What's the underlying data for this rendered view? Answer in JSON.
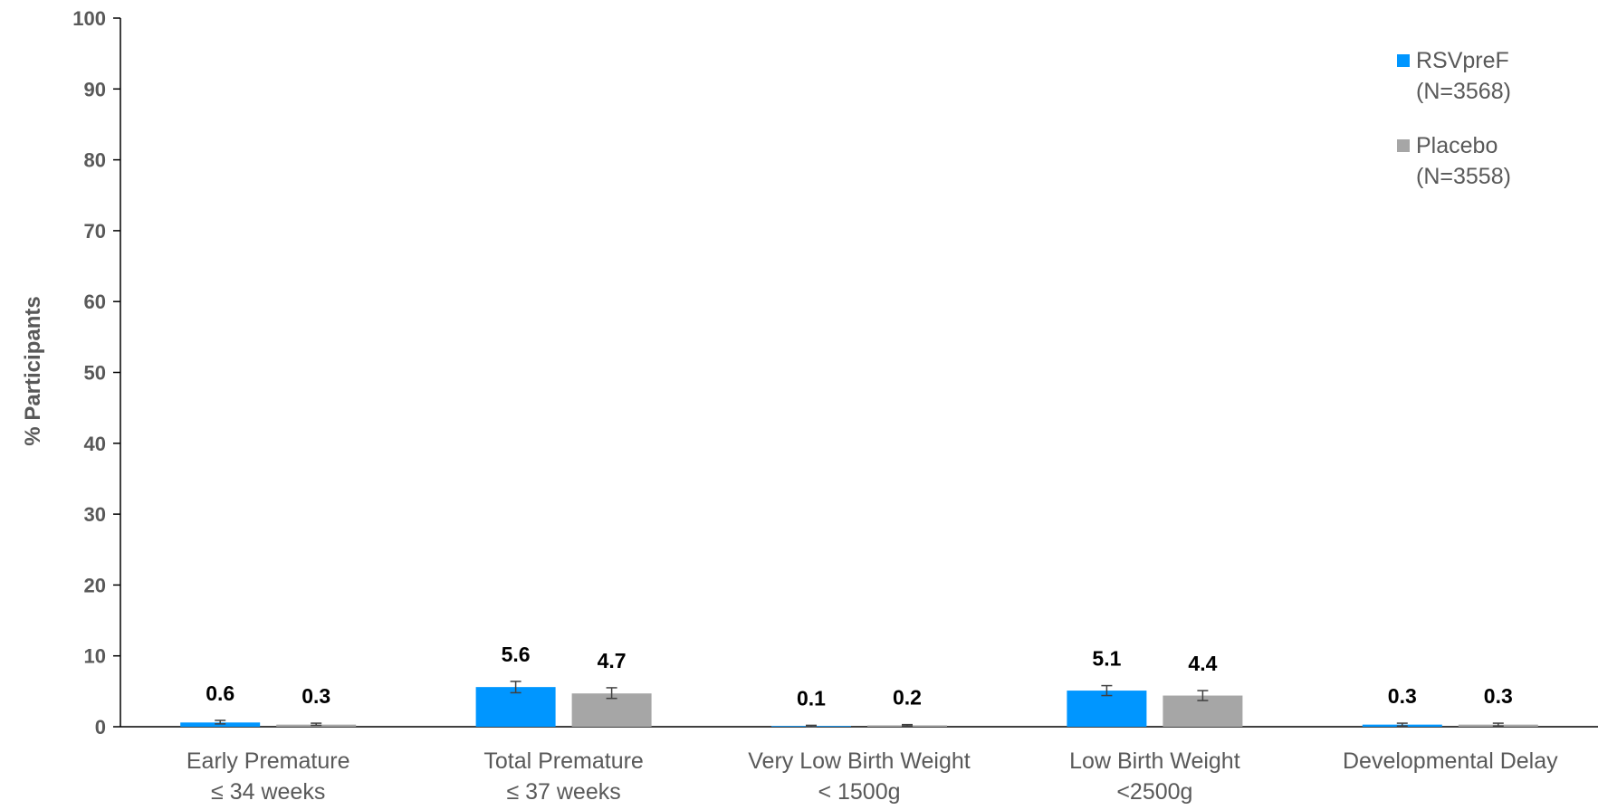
{
  "chart_data": {
    "type": "bar",
    "ylabel": "% Participants",
    "ylim": [
      0,
      100
    ],
    "yticks": [
      0,
      10,
      20,
      30,
      40,
      50,
      60,
      70,
      80,
      90,
      100
    ],
    "categories": [
      [
        "Early Premature",
        "≤ 34 weeks"
      ],
      [
        "Total Premature",
        "≤ 37 weeks"
      ],
      [
        "Very Low Birth Weight",
        "< 1500g"
      ],
      [
        "Low Birth Weight",
        "<2500g"
      ],
      [
        "Developmental Delay"
      ]
    ],
    "series": [
      {
        "name": [
          "RSVpreF",
          "(N=3568)"
        ],
        "color": "#0096FF",
        "values": [
          0.6,
          5.6,
          0.1,
          5.1,
          0.3
        ],
        "labels": [
          "0.6",
          "5.6",
          "0.1",
          "5.1",
          "0.3"
        ],
        "error_low": [
          0.4,
          4.8,
          0.0,
          4.4,
          0.1
        ],
        "error_high": [
          0.9,
          6.4,
          0.2,
          5.8,
          0.5
        ]
      },
      {
        "name": [
          "Placebo",
          "(N=3558)"
        ],
        "color": "#A6A6A6",
        "values": [
          0.3,
          4.7,
          0.2,
          4.4,
          0.3
        ],
        "labels": [
          "0.3",
          "4.7",
          "0.2",
          "4.4",
          "0.3"
        ],
        "error_low": [
          0.2,
          4.0,
          0.1,
          3.7,
          0.1
        ],
        "error_high": [
          0.5,
          5.5,
          0.3,
          5.1,
          0.5
        ]
      }
    ],
    "legend_position": "top-right",
    "grid": false
  }
}
